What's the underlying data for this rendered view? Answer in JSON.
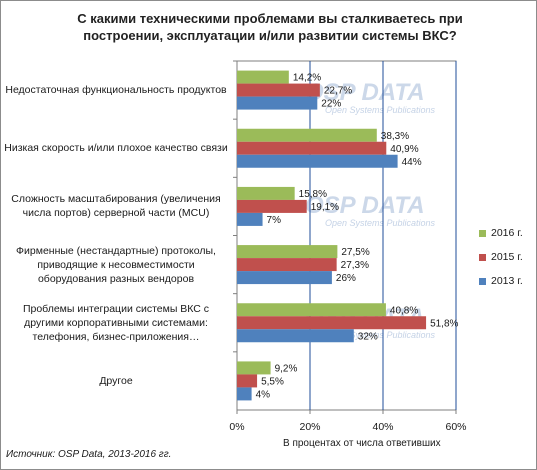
{
  "chart_data": {
    "type": "bar",
    "orientation": "horizontal",
    "title": "С какими техническими проблемами вы сталкиваетесь  при построении,  эксплуатации  и/или развитии системы ВКС?",
    "categories": [
      "Недостаточная функциональность продуктов",
      "Низкая скорость и/или плохое качество связи",
      "Сложность масштабирования (увеличения числа портов) серверной части (MCU)",
      "Фирменные (нестандартные) протоколы, приводящие к несовместимости оборудования разных вендоров",
      "Проблемы интеграции системы ВКС с другими корпоративными системами: телефония, бизнес-приложения…",
      "Другое"
    ],
    "series": [
      {
        "name": "2016 г.",
        "color": "#9bbb59",
        "values": [
          14.2,
          38.3,
          15.8,
          27.5,
          40.8,
          9.2
        ],
        "labels": [
          "14,2%",
          "38,3%",
          "15,8%",
          "27,5%",
          "40,8%",
          "9,2%"
        ]
      },
      {
        "name": "2015 г.",
        "color": "#c0504d",
        "values": [
          22.7,
          40.9,
          19.1,
          27.3,
          51.8,
          5.5
        ],
        "labels": [
          "22,7%",
          "40,9%",
          "19,1%",
          "27,3%",
          "51,8%",
          "5,5%"
        ]
      },
      {
        "name": "2013 г.",
        "color": "#4f81bd",
        "values": [
          22,
          44,
          7,
          26,
          32,
          4
        ],
        "labels": [
          "22%",
          "44%",
          "7%",
          "26%",
          "32%",
          "4%"
        ]
      }
    ],
    "xlim": [
      0,
      60
    ],
    "xticks": [
      "0%",
      "20%",
      "40%",
      "60%"
    ],
    "xlabel": "В процентах от числа ответивших",
    "grid": true,
    "legend_position": "right"
  },
  "source": "Источник: OSP Data, 2013-2016 гг.",
  "watermark": {
    "logo": "OSP DATA",
    "tagline": "Open Systems Publications"
  },
  "colors": {
    "grid": "#1f4e9a",
    "axis": "#7f7f7f",
    "watermark": "#b7c8e0"
  }
}
